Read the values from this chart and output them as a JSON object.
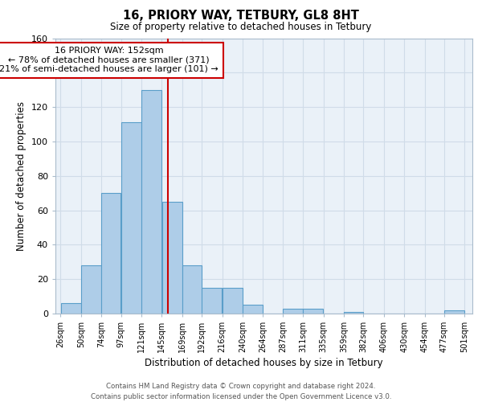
{
  "title_line1": "16, PRIORY WAY, TETBURY, GL8 8HT",
  "title_line2": "Size of property relative to detached houses in Tetbury",
  "xlabel": "Distribution of detached houses by size in Tetbury",
  "ylabel": "Number of detached properties",
  "bar_left_edges": [
    26,
    50,
    74,
    97,
    121,
    145,
    169,
    192,
    216,
    240,
    264,
    287,
    311,
    335,
    359,
    382,
    406,
    430,
    454,
    477
  ],
  "bar_widths": [
    24,
    24,
    23,
    24,
    24,
    24,
    23,
    24,
    24,
    24,
    23,
    24,
    24,
    24,
    23,
    24,
    24,
    24,
    23,
    24
  ],
  "bar_heights": [
    6,
    28,
    70,
    111,
    130,
    65,
    28,
    15,
    15,
    5,
    0,
    3,
    3,
    0,
    1,
    0,
    0,
    0,
    0,
    2
  ],
  "bar_color": "#aecde8",
  "bar_edgecolor": "#5a9ec9",
  "tick_labels": [
    "26sqm",
    "50sqm",
    "74sqm",
    "97sqm",
    "121sqm",
    "145sqm",
    "169sqm",
    "192sqm",
    "216sqm",
    "240sqm",
    "264sqm",
    "287sqm",
    "311sqm",
    "335sqm",
    "359sqm",
    "382sqm",
    "406sqm",
    "430sqm",
    "454sqm",
    "477sqm",
    "501sqm"
  ],
  "tick_positions": [
    26,
    50,
    74,
    97,
    121,
    145,
    169,
    192,
    216,
    240,
    264,
    287,
    311,
    335,
    359,
    382,
    406,
    430,
    454,
    477,
    501
  ],
  "ylim": [
    0,
    160
  ],
  "xlim": [
    20,
    510
  ],
  "property_line_x": 152,
  "property_line_color": "#cc0000",
  "annotation_text": "16 PRIORY WAY: 152sqm\n← 78% of detached houses are smaller (371)\n21% of semi-detached houses are larger (101) →",
  "grid_color": "#d0dce8",
  "background_color": "#ffffff",
  "footnote_line1": "Contains HM Land Registry data © Crown copyright and database right 2024.",
  "footnote_line2": "Contains public sector information licensed under the Open Government Licence v3.0."
}
